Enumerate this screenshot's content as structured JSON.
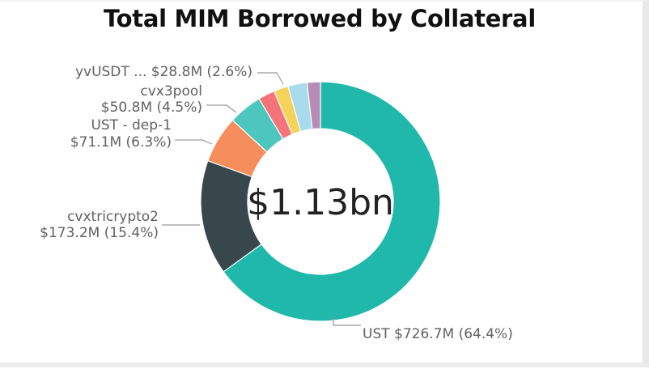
{
  "chart_data": {
    "type": "pie",
    "title": "Total MIM Borrowed by Collateral",
    "center_label": "$1.13bn",
    "slices": [
      {
        "label": "UST",
        "value_text": "$726.7M",
        "value": 726.7,
        "percent": 64.4,
        "percent_text": "(64.4%)",
        "color": "#1fb8ab"
      },
      {
        "label": "cvxtricrypto2",
        "value_text": "$173.2M",
        "value": 173.2,
        "percent": 15.4,
        "percent_text": "(15.4%)",
        "color": "#37474c"
      },
      {
        "label": "UST - dep-1",
        "value_text": "$71.1M",
        "value": 71.1,
        "percent": 6.3,
        "percent_text": "(6.3%)",
        "color": "#f58e5c"
      },
      {
        "label": "cvx3pool",
        "value_text": "$50.8M",
        "value": 50.8,
        "percent": 4.5,
        "percent_text": "(4.5%)",
        "color": "#4dc6bd"
      },
      {
        "label": "",
        "value": 25.0,
        "percent": 2.2,
        "color": "#f4747a"
      },
      {
        "label": "",
        "value": 22.0,
        "percent": 1.9,
        "color": "#f5d25a"
      },
      {
        "label": "yvUSDT ...",
        "value_text": "$28.8M",
        "value": 28.8,
        "percent": 2.6,
        "percent_text": "(2.6%)",
        "color": "#a8dcec"
      },
      {
        "label": "",
        "value": 20.0,
        "percent": 1.8,
        "color": "#b88cb7"
      }
    ]
  }
}
